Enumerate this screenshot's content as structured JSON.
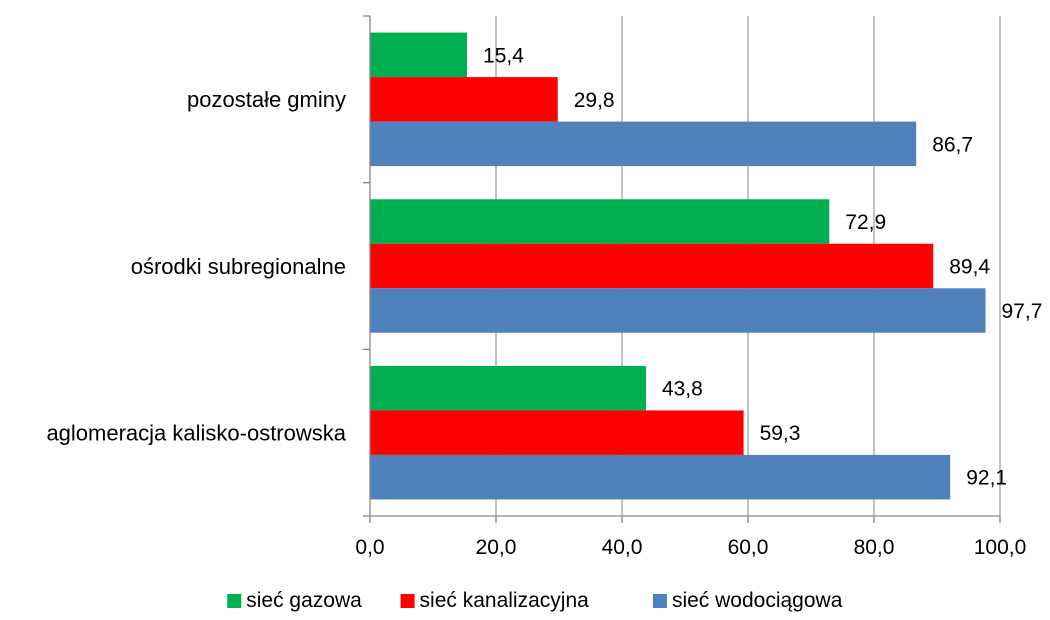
{
  "chart_data": {
    "type": "bar",
    "orientation": "horizontal",
    "categories": [
      "pozostałe gminy",
      "ośrodki subregionalne",
      "aglomeracja kalisko-ostrowska"
    ],
    "series": [
      {
        "name": "sieć gazowa",
        "color": "#00b050",
        "values": [
          15.4,
          72.9,
          43.8
        ],
        "labels": [
          "15,4",
          "72,9",
          "43,8"
        ]
      },
      {
        "name": "sieć kanalizacyjna",
        "color": "#ff0000",
        "values": [
          29.8,
          89.4,
          59.3
        ],
        "labels": [
          "29,8",
          "89,4",
          "59,3"
        ]
      },
      {
        "name": "sieć wodociągowa",
        "color": "#4f81bd",
        "values": [
          86.7,
          97.7,
          92.1
        ],
        "labels": [
          "86,7",
          "97,7",
          "92,1"
        ]
      }
    ],
    "xlim": [
      0,
      100
    ],
    "xticks": [
      0,
      20,
      40,
      60,
      80,
      100
    ],
    "xtick_labels": [
      "0,0",
      "20,0",
      "40,0",
      "60,0",
      "80,0",
      "100,0"
    ],
    "title": "",
    "xlabel": "",
    "ylabel": "",
    "grid": "vertical",
    "legend": "bottom"
  }
}
